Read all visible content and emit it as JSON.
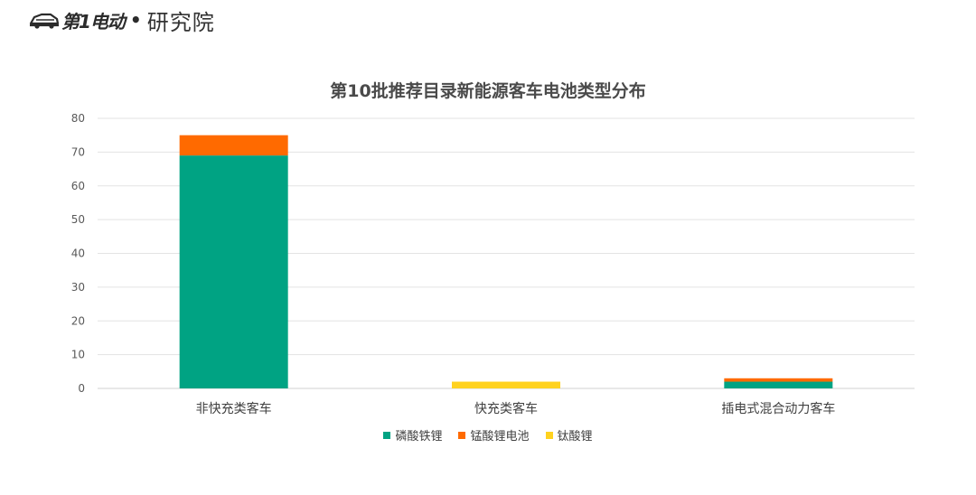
{
  "logo": {
    "brand_text": "第1电动",
    "org_text": "研究院"
  },
  "chart_data": {
    "type": "bar",
    "stacked": true,
    "title": "第10批推荐目录新能源客车电池类型分布",
    "categories": [
      "非快充类客车",
      "快充类客车",
      "插电式混合动力客车"
    ],
    "series": [
      {
        "name": "磷酸铁锂",
        "color": "#00A383",
        "values": [
          69,
          0,
          2
        ]
      },
      {
        "name": "锰酸锂电池",
        "color": "#FF6A00",
        "values": [
          6,
          0,
          1
        ]
      },
      {
        "name": "钛酸锂",
        "color": "#FFD21F",
        "values": [
          0,
          2,
          0
        ]
      }
    ],
    "ylim": [
      0,
      80
    ],
    "yticks": [
      0,
      10,
      20,
      30,
      40,
      50,
      60,
      70,
      80
    ],
    "grid": true,
    "legend_position": "bottom",
    "xlabel": "",
    "ylabel": ""
  }
}
